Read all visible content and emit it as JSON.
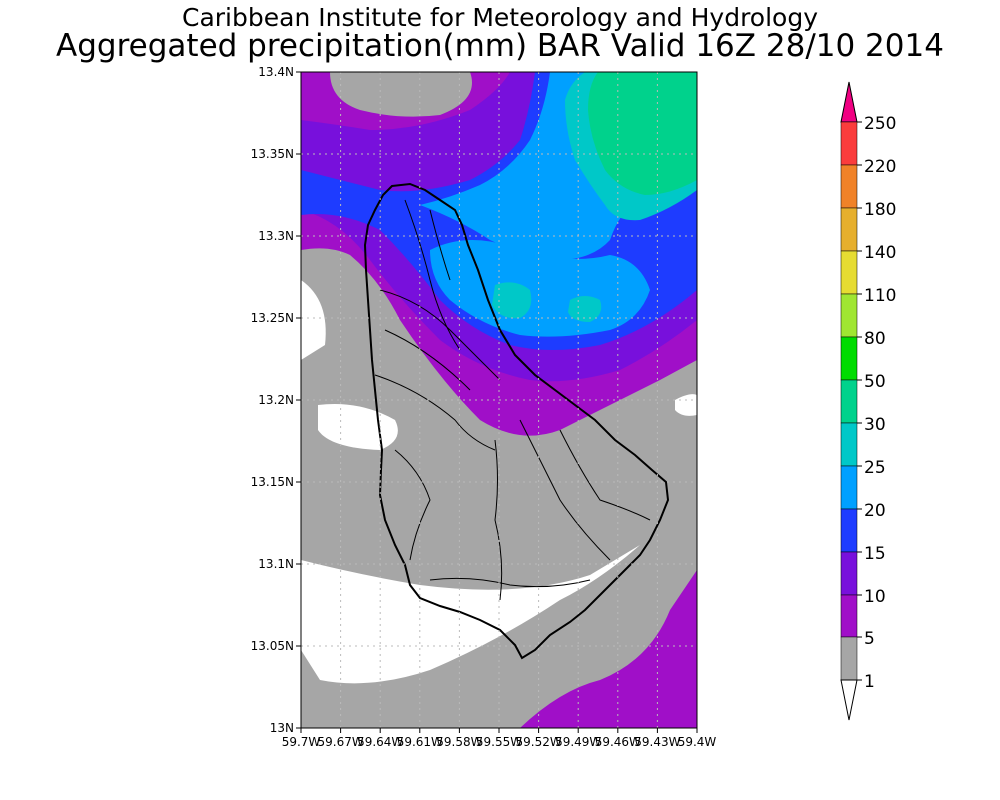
{
  "title": {
    "line1": "Caribbean Institute for Meteorology and Hydrology",
    "line2": "Aggregated precipitation(mm) BAR Valid 16Z 28/10 2014"
  },
  "map": {
    "lat_ticks": [
      "13.4N",
      "13.35N",
      "13.3N",
      "13.25N",
      "13.2N",
      "13.15N",
      "13.1N",
      "13.05N",
      "13N"
    ],
    "lon_ticks": [
      "59.7W",
      "59.67W",
      "59.64W",
      "59.61W",
      "59.58W",
      "59.55W",
      "59.52W",
      "59.49W",
      "59.46W",
      "59.43W",
      "59.4W"
    ],
    "grid": true,
    "feature": "Barbados coastline and district boundaries"
  },
  "colorbar": {
    "levels": [
      "1",
      "5",
      "10",
      "15",
      "20",
      "25",
      "30",
      "50",
      "80",
      "110",
      "140",
      "180",
      "220",
      "250"
    ],
    "colors": {
      "lt1": "#ffffff",
      "1_5": "#a6a6a6",
      "5_10": "#a00fc8",
      "10_15": "#7810dc",
      "15_20": "#1e3cff",
      "20_25": "#00a0ff",
      "25_30": "#00c8c8",
      "30_50": "#00d28c",
      "50_80": "#00dc00",
      "80_110": "#a0e632",
      "110_140": "#e6dc32",
      "140_180": "#e6af2d",
      "180_220": "#f08228",
      "220_250": "#fa3c3c",
      "gt250": "#f00082"
    }
  }
}
